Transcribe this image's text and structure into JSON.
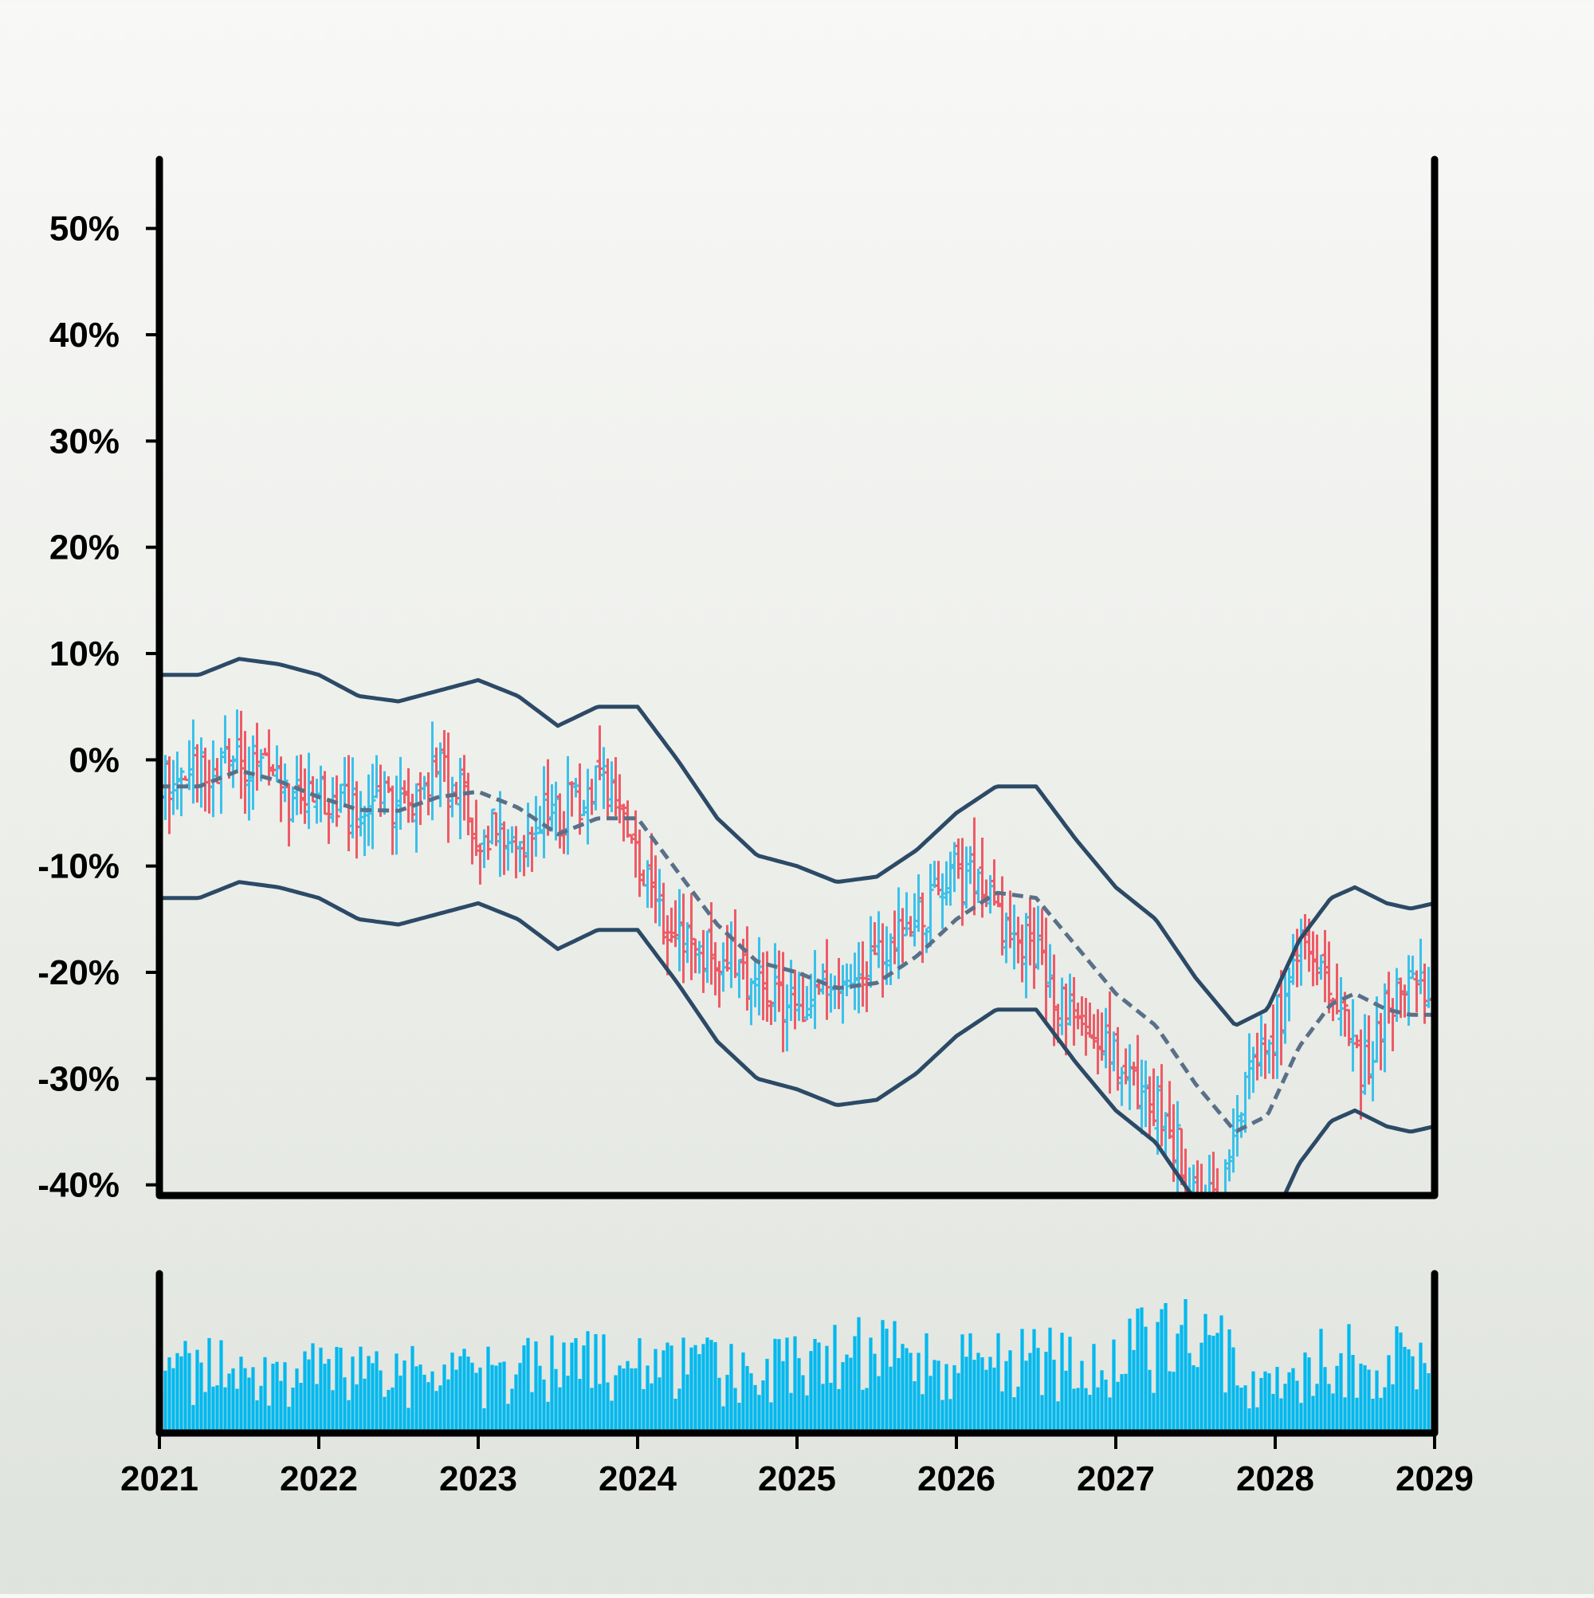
{
  "chart_data": {
    "type": "ohlc",
    "title": "",
    "xlabel": "",
    "ylabel": "",
    "y_axis": {
      "ticks": [
        50,
        40,
        30,
        20,
        10,
        0,
        -10,
        -20,
        -30,
        -40
      ],
      "tick_labels": [
        "50%",
        "40%",
        "30%",
        "20%",
        "10%",
        "0%",
        "-10%",
        "-20%",
        "-30%",
        "-40%"
      ],
      "range": [
        -41,
        58
      ]
    },
    "x_axis": {
      "ticks": [
        2021,
        2022,
        2023,
        2024,
        2025,
        2026,
        2027,
        2028,
        2029
      ],
      "tick_labels": [
        "2021",
        "2022",
        "2023",
        "2024",
        "2025",
        "2026",
        "2027",
        "2028",
        "2029"
      ],
      "range": [
        2021,
        2029
      ]
    },
    "grid": false,
    "legend": "none",
    "series_colors": {
      "up": "#3cc1ea",
      "down": "#ee5b66",
      "bands": "#2c4a66",
      "middle": "#5a7088",
      "volume": "#00b8ee"
    },
    "price_path": [
      [
        2021.0,
        -2
      ],
      [
        2021.25,
        -1
      ],
      [
        2021.5,
        1
      ],
      [
        2021.75,
        -3
      ],
      [
        2022.0,
        -4
      ],
      [
        2022.25,
        -5
      ],
      [
        2022.5,
        -4
      ],
      [
        2022.75,
        -1
      ],
      [
        2023.0,
        -6
      ],
      [
        2023.25,
        -8
      ],
      [
        2023.5,
        -5
      ],
      [
        2023.75,
        -2
      ],
      [
        2024.0,
        -8
      ],
      [
        2024.25,
        -18
      ],
      [
        2024.5,
        -18
      ],
      [
        2024.75,
        -21
      ],
      [
        2025.0,
        -23
      ],
      [
        2025.25,
        -22
      ],
      [
        2025.5,
        -19
      ],
      [
        2025.75,
        -15
      ],
      [
        2026.0,
        -11
      ],
      [
        2026.25,
        -14
      ],
      [
        2026.5,
        -18
      ],
      [
        2026.75,
        -25
      ],
      [
        2027.0,
        -28
      ],
      [
        2027.25,
        -33
      ],
      [
        2027.5,
        -40
      ],
      [
        2027.65,
        -42
      ],
      [
        2027.85,
        -29
      ],
      [
        2028.0,
        -25
      ],
      [
        2028.2,
        -16
      ],
      [
        2028.4,
        -24
      ],
      [
        2028.55,
        -29
      ],
      [
        2028.7,
        -23
      ],
      [
        2028.85,
        -20
      ],
      [
        2029.0,
        -24
      ]
    ],
    "moving_average": [
      [
        2021.0,
        -2.5
      ],
      [
        2021.25,
        -2.5
      ],
      [
        2021.5,
        -1.0
      ],
      [
        2021.75,
        -2.0
      ],
      [
        2022.0,
        -3.5
      ],
      [
        2022.25,
        -4.7
      ],
      [
        2022.5,
        -4.8
      ],
      [
        2022.75,
        -3.5
      ],
      [
        2023.0,
        -3.0
      ],
      [
        2023.25,
        -4.5
      ],
      [
        2023.5,
        -7.0
      ],
      [
        2023.75,
        -5.5
      ],
      [
        2024.0,
        -5.5
      ],
      [
        2024.25,
        -10.5
      ],
      [
        2024.5,
        -15.5
      ],
      [
        2024.75,
        -19.0
      ],
      [
        2025.0,
        -20.0
      ],
      [
        2025.25,
        -21.5
      ],
      [
        2025.5,
        -21.0
      ],
      [
        2025.75,
        -18.5
      ],
      [
        2026.0,
        -15.0
      ],
      [
        2026.25,
        -12.5
      ],
      [
        2026.5,
        -13.0
      ],
      [
        2026.75,
        -17.5
      ],
      [
        2027.0,
        -22.0
      ],
      [
        2027.25,
        -25.0
      ],
      [
        2027.5,
        -30.5
      ],
      [
        2027.75,
        -35.0
      ],
      [
        2027.95,
        -33.5
      ],
      [
        2028.15,
        -27.0
      ],
      [
        2028.35,
        -23.0
      ],
      [
        2028.5,
        -22.0
      ],
      [
        2028.7,
        -23.5
      ],
      [
        2028.85,
        -24.0
      ],
      [
        2029.0,
        -24.0
      ]
    ],
    "upper_band": [
      [
        2021.0,
        8.0
      ],
      [
        2021.25,
        8.0
      ],
      [
        2021.5,
        9.5
      ],
      [
        2021.75,
        9.0
      ],
      [
        2022.0,
        8.0
      ],
      [
        2022.25,
        6.0
      ],
      [
        2022.5,
        5.5
      ],
      [
        2022.75,
        6.5
      ],
      [
        2023.0,
        7.5
      ],
      [
        2023.25,
        6.0
      ],
      [
        2023.5,
        3.2
      ],
      [
        2023.75,
        5.0
      ],
      [
        2024.0,
        5.0
      ],
      [
        2024.25,
        0.0
      ],
      [
        2024.5,
        -5.5
      ],
      [
        2024.75,
        -9.0
      ],
      [
        2025.0,
        -10.0
      ],
      [
        2025.25,
        -11.5
      ],
      [
        2025.5,
        -11.0
      ],
      [
        2025.75,
        -8.5
      ],
      [
        2026.0,
        -5.0
      ],
      [
        2026.25,
        -2.5
      ],
      [
        2026.5,
        -2.5
      ],
      [
        2026.75,
        -7.5
      ],
      [
        2027.0,
        -12.0
      ],
      [
        2027.25,
        -15.0
      ],
      [
        2027.5,
        -20.5
      ],
      [
        2027.75,
        -25.0
      ],
      [
        2027.95,
        -23.5
      ],
      [
        2028.15,
        -17.0
      ],
      [
        2028.35,
        -13.0
      ],
      [
        2028.5,
        -12.0
      ],
      [
        2028.7,
        -13.5
      ],
      [
        2028.85,
        -14.0
      ],
      [
        2029.0,
        -13.5
      ]
    ],
    "lower_band": [
      [
        2021.0,
        -13.0
      ],
      [
        2021.25,
        -13.0
      ],
      [
        2021.5,
        -11.5
      ],
      [
        2021.75,
        -12.0
      ],
      [
        2022.0,
        -13.0
      ],
      [
        2022.25,
        -15.0
      ],
      [
        2022.5,
        -15.5
      ],
      [
        2022.75,
        -14.5
      ],
      [
        2023.0,
        -13.5
      ],
      [
        2023.25,
        -15.0
      ],
      [
        2023.5,
        -17.8
      ],
      [
        2023.75,
        -16.0
      ],
      [
        2024.0,
        -16.0
      ],
      [
        2024.25,
        -21.0
      ],
      [
        2024.5,
        -26.5
      ],
      [
        2024.75,
        -30.0
      ],
      [
        2025.0,
        -31.0
      ],
      [
        2025.25,
        -32.5
      ],
      [
        2025.5,
        -32.0
      ],
      [
        2025.75,
        -29.5
      ],
      [
        2026.0,
        -26.0
      ],
      [
        2026.25,
        -23.5
      ],
      [
        2026.5,
        -23.5
      ],
      [
        2026.75,
        -28.5
      ],
      [
        2027.0,
        -33.0
      ],
      [
        2027.25,
        -36.0
      ],
      [
        2027.5,
        -41.5
      ],
      [
        2027.75,
        -46.0
      ],
      [
        2027.95,
        -44.5
      ],
      [
        2028.15,
        -38.0
      ],
      [
        2028.35,
        -34.0
      ],
      [
        2028.5,
        -33.0
      ],
      [
        2028.7,
        -34.5
      ],
      [
        2028.85,
        -35.0
      ],
      [
        2029.0,
        -34.5
      ]
    ],
    "candle_count": 320,
    "volume_profile": [
      [
        2021.0,
        0.55
      ],
      [
        2022.0,
        0.5
      ],
      [
        2023.0,
        0.48
      ],
      [
        2023.9,
        0.65
      ],
      [
        2024.5,
        0.52
      ],
      [
        2025.0,
        0.55
      ],
      [
        2025.6,
        0.7
      ],
      [
        2026.2,
        0.58
      ],
      [
        2027.0,
        0.65
      ],
      [
        2027.5,
        0.92
      ],
      [
        2027.9,
        0.35
      ],
      [
        2028.3,
        0.6
      ],
      [
        2029.0,
        0.65
      ]
    ]
  }
}
